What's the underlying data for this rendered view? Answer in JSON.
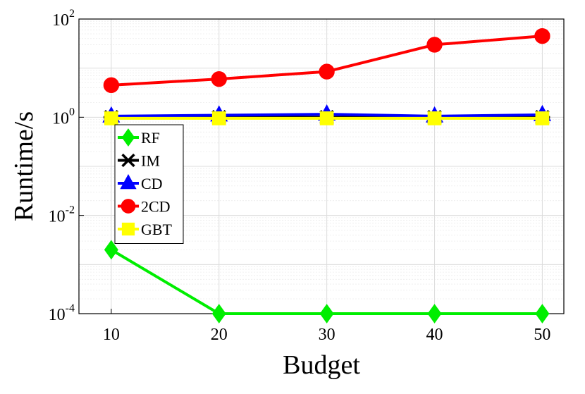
{
  "chart_data": {
    "type": "line",
    "title": "",
    "xlabel": "Budget",
    "ylabel": "Runtime/s",
    "yscale": "log",
    "x": [
      10,
      20,
      30,
      40,
      50
    ],
    "xlim": [
      7,
      52
    ],
    "ylim": [
      0.0001,
      100
    ],
    "xticks": [
      "10",
      "20",
      "30",
      "40",
      "50"
    ],
    "yticks": [
      {
        "base": "10",
        "exp": "-4",
        "value": 0.0001
      },
      {
        "base": "10",
        "exp": "-2",
        "value": 0.01
      },
      {
        "base": "10",
        "exp": "0",
        "value": 1
      },
      {
        "base": "10",
        "exp": "2",
        "value": 100
      }
    ],
    "grid": true,
    "legend_position": "left",
    "series": [
      {
        "name": "RF",
        "color": "#00ee00",
        "marker": "diamond",
        "values": [
          0.002,
          0.0001,
          0.0001,
          0.0001,
          0.0001
        ]
      },
      {
        "name": "IM",
        "color": "#000000",
        "marker": "asterisk",
        "values": [
          1.0,
          1.0,
          1.0,
          1.0,
          1.0
        ]
      },
      {
        "name": "CD",
        "color": "#0000ff",
        "marker": "triangle",
        "values": [
          1.05,
          1.1,
          1.15,
          1.05,
          1.12
        ]
      },
      {
        "name": "2CD",
        "color": "#ff0000",
        "marker": "circle",
        "values": [
          4.5,
          6.0,
          8.5,
          30,
          45
        ]
      },
      {
        "name": "GBT",
        "color": "#ffff00",
        "marker": "square",
        "values": [
          0.95,
          0.95,
          0.95,
          0.95,
          0.95
        ]
      }
    ]
  }
}
